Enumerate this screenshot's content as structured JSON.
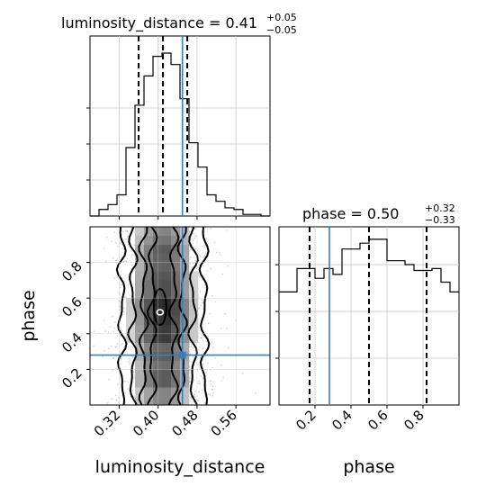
{
  "chart_data": {
    "type": "corner",
    "parameters": [
      "luminosity_distance",
      "phase"
    ],
    "titles": {
      "luminosity_distance": {
        "prefix": "luminosity_distance = 0.41",
        "upper": "+0.05",
        "lower": "−0.05",
        "median": 0.41,
        "plus": 0.05,
        "minus": 0.05
      },
      "phase": {
        "prefix": "phase = 0.50",
        "upper": "+0.32",
        "lower": "−0.33",
        "median": 0.5,
        "plus": 0.32,
        "minus": 0.33
      }
    },
    "xlabels": {
      "luminosity_distance": "luminosity_distance",
      "phase": "phase"
    },
    "ylabel": "phase",
    "luminosity_distance_axis": {
      "range": [
        0.26,
        0.63
      ],
      "ticks": [
        0.32,
        0.4,
        0.48,
        0.56
      ],
      "tick_labels": [
        "0.32",
        "0.40",
        "0.48",
        "0.56"
      ]
    },
    "phase_axis": {
      "range": [
        0.0,
        1.0
      ],
      "ticks": [
        0.2,
        0.4,
        0.6,
        0.8
      ],
      "tick_labels": [
        "0.2",
        "0.4",
        "0.6",
        "0.8"
      ]
    },
    "truth": {
      "luminosity_distance": 0.45,
      "phase": 0.28
    },
    "quantile_lines": {
      "luminosity_distance": [
        0.36,
        0.41,
        0.46
      ],
      "phase": [
        0.17,
        0.5,
        0.82
      ]
    },
    "histogram_luminosity_distance": {
      "bin_edges": [
        0.26,
        0.2785,
        0.297,
        0.3155,
        0.334,
        0.3525,
        0.371,
        0.3895,
        0.408,
        0.4265,
        0.445,
        0.4635,
        0.482,
        0.5005,
        0.519,
        0.5375,
        0.556,
        0.5745,
        0.593,
        0.6115,
        0.63
      ],
      "counts": [
        0.0,
        0.04,
        0.07,
        0.13,
        0.42,
        0.68,
        0.86,
        0.98,
        1.0,
        0.93,
        0.72,
        0.45,
        0.3,
        0.13,
        0.09,
        0.05,
        0.04,
        0.01,
        0.01,
        0.0
      ]
    },
    "histogram_phase": {
      "bin_edges": [
        0.0,
        0.05,
        0.1,
        0.15,
        0.2,
        0.25,
        0.3,
        0.35,
        0.4,
        0.45,
        0.5,
        0.55,
        0.6,
        0.65,
        0.7,
        0.75,
        0.8,
        0.85,
        0.9,
        0.95,
        1.0
      ],
      "counts": [
        0.58,
        0.58,
        0.7,
        0.7,
        0.65,
        0.7,
        0.67,
        0.8,
        0.8,
        0.83,
        0.85,
        0.85,
        0.74,
        0.74,
        0.72,
        0.69,
        0.69,
        0.7,
        0.63,
        0.58
      ]
    },
    "grid": true
  }
}
